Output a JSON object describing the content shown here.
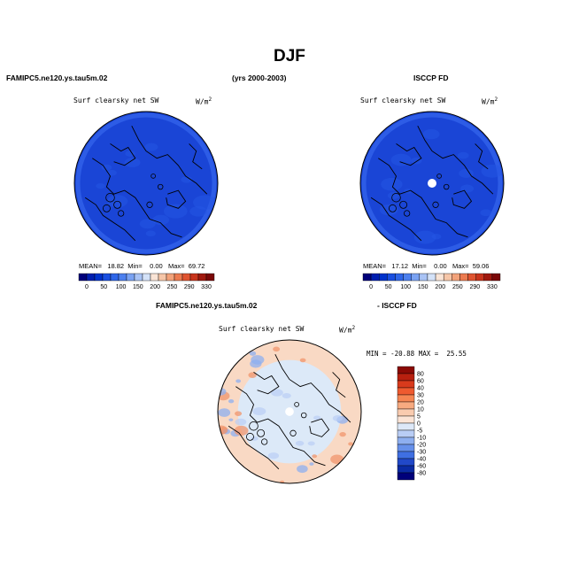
{
  "header": {
    "title": "DJF",
    "model_name": "FAMIPC5.ne120.ys.tau5m.02",
    "years": "(yrs 2000-2003)",
    "obs_name": "ISCCP FD"
  },
  "panels": [
    {
      "variable": "Surf clearsky net SW",
      "units_main": "W/m",
      "units_sup": "2",
      "stats": {
        "mean_label": "MEAN=",
        "mean": "18.82",
        "min_label": "Min=",
        "min": "0.00",
        "max_label": "Max=",
        "max": "69.72"
      }
    },
    {
      "variable": "Surf clearsky net SW",
      "units_main": "W/m",
      "units_sup": "2",
      "stats": {
        "mean_label": "MEAN=",
        "mean": "17.12",
        "min_label": "Min=",
        "min": "0.00",
        "max_label": "Max=",
        "max": "59.06"
      }
    }
  ],
  "diff_panel": {
    "model_name": "FAMIPC5.ne120.ys.tau5m.02",
    "obs_label": "- ISCCP FD",
    "variable": "Surf clearsky net SW",
    "units_main": "W/m",
    "units_sup": "2",
    "stats": {
      "min_label": "MIN =",
      "min": "-20.88",
      "max_label": "MAX =",
      "max": "25.55"
    }
  },
  "colorbar_top": {
    "labels": [
      "0",
      "50",
      "100",
      "150",
      "200",
      "250",
      "290",
      "330"
    ],
    "colors": [
      "#00007a",
      "#001fb0",
      "#0033cc",
      "#1a4fe0",
      "#2f66e8",
      "#4d80ee",
      "#7aa2f2",
      "#a9c3f5",
      "#d4e2f8",
      "#f9e4d6",
      "#f6c6a8",
      "#f2a27a",
      "#ec7b50",
      "#df5430",
      "#c8341c",
      "#a0180e",
      "#7a0707"
    ]
  },
  "colorbar_diff": {
    "labels": [
      "80",
      "60",
      "40",
      "30",
      "20",
      "10",
      "5",
      "0",
      "-5",
      "-10",
      "-20",
      "-30",
      "-40",
      "-60",
      "-80"
    ],
    "colors": [
      "#8b0a05",
      "#b8200f",
      "#d83a1c",
      "#ee5a2f",
      "#f58552",
      "#f7aa80",
      "#f9cbaf",
      "#fbe4d6",
      "#dde8f8",
      "#b9cdf5",
      "#8eaff0",
      "#6690ea",
      "#3f6fe2",
      "#2148c8",
      "#0a2aa3",
      "#00007a"
    ]
  },
  "colors": {
    "map_blue": "#1a45d6",
    "map_blue_light": "#2456e4",
    "map_blue_rim": "#3a6cf0",
    "diff_neutral": "#dce9f8",
    "diff_warm": "#f9d9c4",
    "diff_hot": "#f0946c"
  }
}
